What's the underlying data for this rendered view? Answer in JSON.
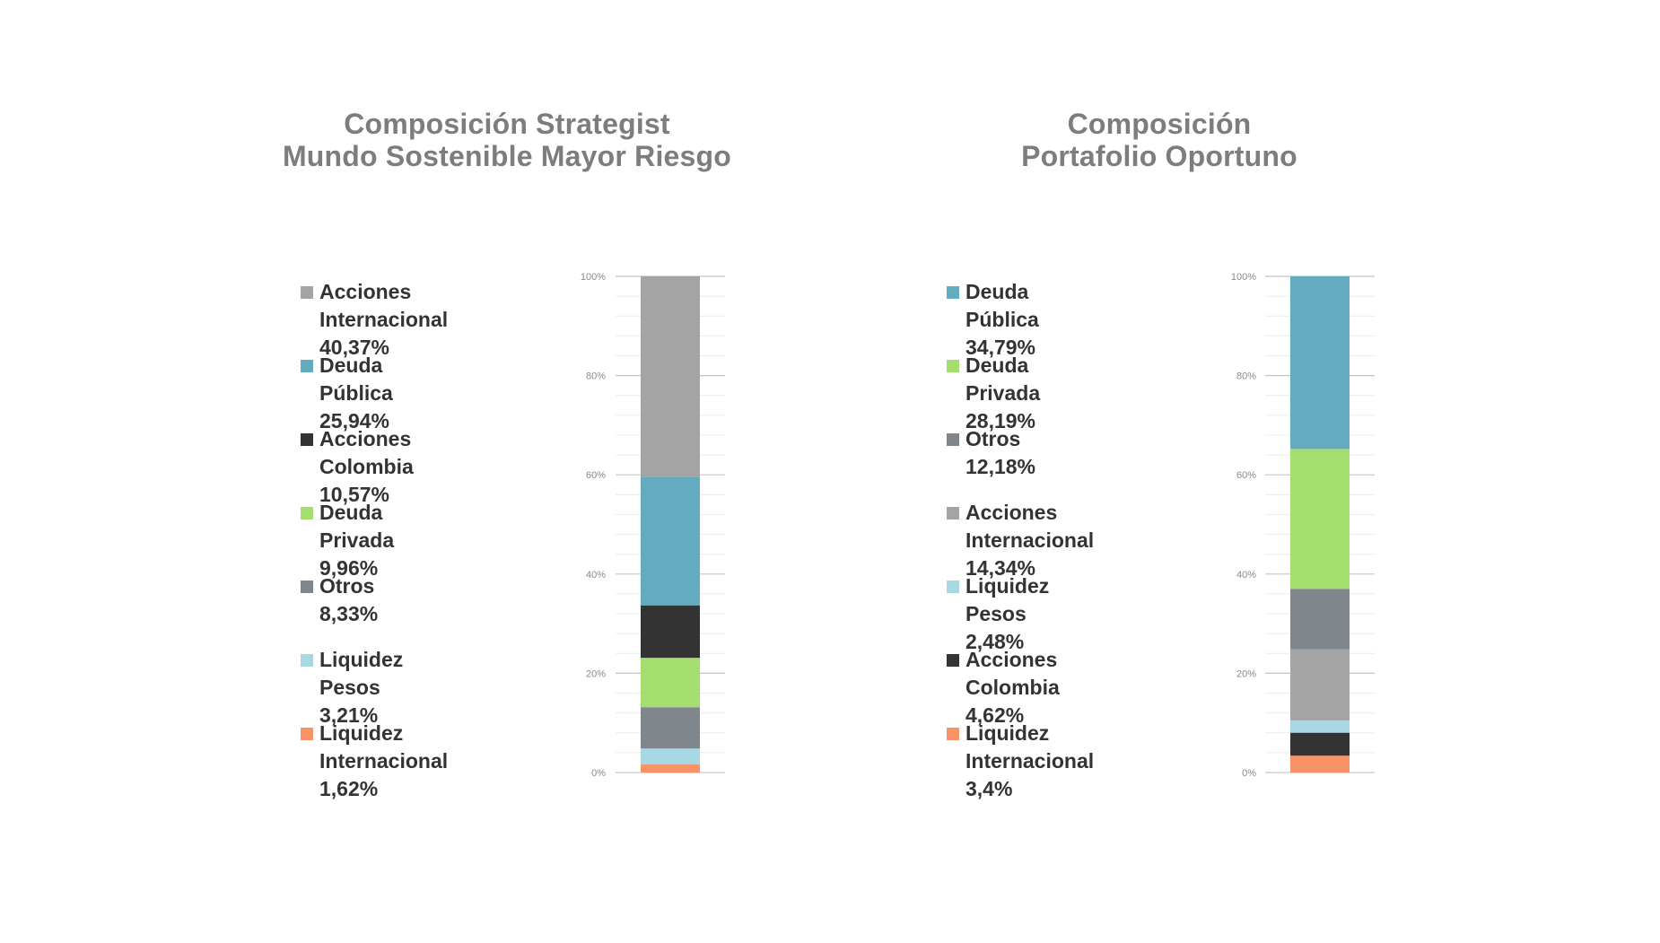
{
  "chart_data": [
    {
      "type": "bar",
      "stacked": true,
      "title": [
        "Composición Strategist",
        "Mundo Sostenible Mayor Riesgo"
      ],
      "ylim": [
        0,
        100
      ],
      "yticks": [
        "0%",
        "20%",
        "40%",
        "60%",
        "80%",
        "100%"
      ],
      "grid": true,
      "legend_position": "left",
      "series": [
        {
          "name": "Liquidez Internacional",
          "label": "Liquidez Internacional 1,62%",
          "lines": [
            "Liquidez Internacional",
            "1,62%"
          ],
          "value": 1.62,
          "color": "#f79367"
        },
        {
          "name": "Liquidez Pesos",
          "label": "Liquidez Pesos 3,21%",
          "lines": [
            "Liquidez Pesos 3,21%"
          ],
          "value": 3.21,
          "color": "#a8d8e3"
        },
        {
          "name": "Otros",
          "label": "Otros 8,33%",
          "lines": [
            "Otros 8,33%"
          ],
          "value": 8.33,
          "color": "#7f868c"
        },
        {
          "name": "Deuda Privada",
          "label": "Deuda Privada 9,96%",
          "lines": [
            "Deuda Privada 9,96%"
          ],
          "value": 9.96,
          "color": "#a3de6e"
        },
        {
          "name": "Acciones Colombia",
          "label": "Acciones Colombia 10,57%",
          "lines": [
            "Acciones Colombia",
            "10,57%"
          ],
          "value": 10.57,
          "color": "#333333"
        },
        {
          "name": "Deuda Pública",
          "label": "Deuda Pública 25,94%",
          "lines": [
            "Deuda Pública 25,94%"
          ],
          "value": 25.94,
          "color": "#63abbe"
        },
        {
          "name": "Acciones Internacional",
          "label": "Acciones Internacional 40,37%",
          "lines": [
            "Acciones Internacional",
            "40,37%"
          ],
          "value": 40.37,
          "color": "#a5a4a4"
        }
      ],
      "legend_order": [
        "Acciones Internacional",
        "Deuda Pública",
        "Acciones Colombia",
        "Deuda Privada",
        "Otros",
        "Liquidez Pesos",
        "Liquidez Internacional"
      ]
    },
    {
      "type": "bar",
      "stacked": true,
      "title": [
        "Composición",
        "Portafolio Oportuno"
      ],
      "ylim": [
        0,
        100
      ],
      "yticks": [
        "0%",
        "20%",
        "40%",
        "60%",
        "80%",
        "100%"
      ],
      "grid": true,
      "legend_position": "left",
      "series": [
        {
          "name": "Liquidez Internacional",
          "label": "Liquidez Internacional 3,4%",
          "lines": [
            "Liquidez Internacional",
            "3,4%"
          ],
          "value": 3.4,
          "color": "#f79367"
        },
        {
          "name": "Acciones Colombia",
          "label": "Acciones Colombia 4,62%",
          "lines": [
            "Acciones Colombia",
            "4,62%"
          ],
          "value": 4.62,
          "color": "#333333"
        },
        {
          "name": "Liquidez Pesos",
          "label": "Liquidez Pesos 2,48%",
          "lines": [
            "Liquidez Pesos 2,48%"
          ],
          "value": 2.48,
          "color": "#a8d8e3"
        },
        {
          "name": "Acciones Internacional",
          "label": "Acciones Internacional 14,34%",
          "lines": [
            "Acciones",
            "Internacional 14,34%"
          ],
          "value": 14.34,
          "color": "#a5a4a4"
        },
        {
          "name": "Otros",
          "label": "Otros 12,18%",
          "lines": [
            "Otros 12,18%"
          ],
          "value": 12.18,
          "color": "#7f868c"
        },
        {
          "name": "Deuda Privada",
          "label": "Deuda Privada 28,19%",
          "lines": [
            "Deuda Privada 28,19%"
          ],
          "value": 28.19,
          "color": "#a3de6e"
        },
        {
          "name": "Deuda Pública",
          "label": "Deuda Pública 34,79%",
          "lines": [
            "Deuda Pública 34,79%"
          ],
          "value": 34.79,
          "color": "#63abbe"
        }
      ],
      "legend_order": [
        "Deuda Pública",
        "Deuda Privada",
        "Otros",
        "Acciones Internacional",
        "Liquidez Pesos",
        "Acciones Colombia",
        "Liquidez Internacional"
      ]
    }
  ]
}
